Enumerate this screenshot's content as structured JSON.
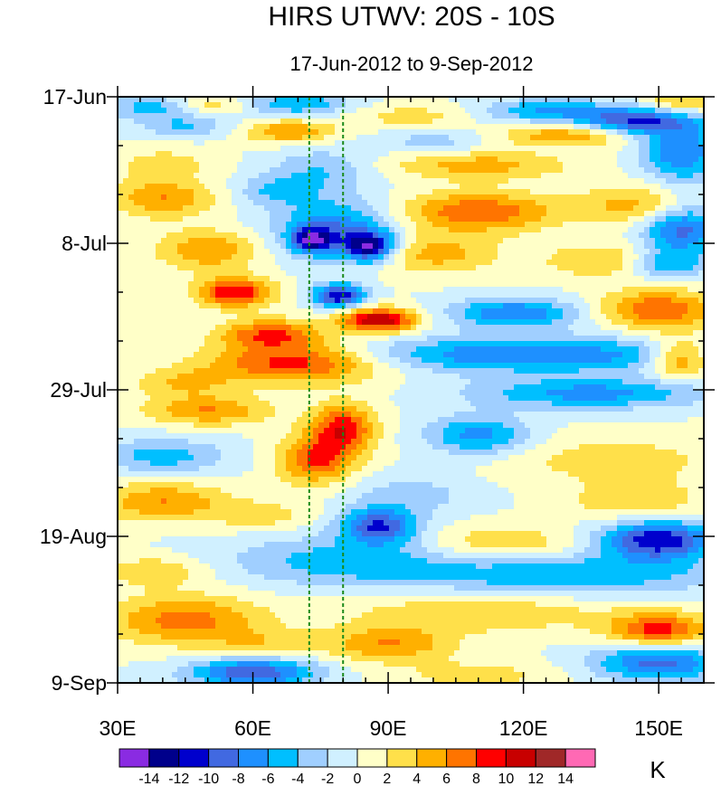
{
  "chart_data": {
    "type": "heatmap",
    "title": "HIRS UTWV: 20S - 10S",
    "subtitle": "17-Jun-2012 to 9-Sep-2012",
    "x_axis": {
      "range": [
        30,
        160
      ],
      "ticks": [
        {
          "value": 30,
          "label": "30E"
        },
        {
          "value": 60,
          "label": "60E"
        },
        {
          "value": 90,
          "label": "90E"
        },
        {
          "value": 120,
          "label": "120E"
        },
        {
          "value": 150,
          "label": "150E"
        }
      ],
      "minor_step": 10
    },
    "y_axis": {
      "range_days": [
        0,
        84
      ],
      "ticks": [
        {
          "day": 0,
          "label": "17-Jun"
        },
        {
          "day": 21,
          "label": "8-Jul"
        },
        {
          "day": 42,
          "label": "29-Jul"
        },
        {
          "day": 63,
          "label": "19-Aug"
        },
        {
          "day": 84,
          "label": "9-Sep"
        }
      ],
      "minor_step_days": 7
    },
    "reference_lines_lon": [
      72.5,
      80
    ],
    "colorbar": {
      "unit": "K",
      "levels": [
        -14,
        -12,
        -10,
        -8,
        -6,
        -4,
        -2,
        0,
        2,
        4,
        6,
        8,
        10,
        12,
        14
      ],
      "labels": [
        "-14",
        "-12",
        "-10",
        "-8",
        "-6",
        "-4",
        "-2",
        "0",
        "2",
        "4",
        "6",
        "8",
        "10",
        "12",
        "14"
      ],
      "colors": [
        "#8a2be2",
        "#00008b",
        "#0000cd",
        "#4169e1",
        "#1e90ff",
        "#00bfff",
        "#a0cfff",
        "#d0f0ff",
        "#ffffc8",
        "#ffe04a",
        "#ffb000",
        "#ff7400",
        "#ff0000",
        "#c80000",
        "#a02828",
        "#ff69b4"
      ]
    },
    "anomaly_features": [
      {
        "lon": 38,
        "day": 1.5,
        "sigma_lon": 8,
        "sigma_day": 1.2,
        "value": -5
      },
      {
        "lon": 50,
        "day": 1.2,
        "sigma_lon": 6,
        "sigma_day": 1.0,
        "value": 4
      },
      {
        "lon": 70,
        "day": 1.0,
        "sigma_lon": 8,
        "sigma_day": 1.2,
        "value": -6
      },
      {
        "lon": 95,
        "day": 2.8,
        "sigma_lon": 10,
        "sigma_day": 1.2,
        "value": 3
      },
      {
        "lon": 125,
        "day": 2.0,
        "sigma_lon": 10,
        "sigma_day": 1.2,
        "value": -6
      },
      {
        "lon": 145,
        "day": 3.5,
        "sigma_lon": 9,
        "sigma_day": 1.4,
        "value": -10
      },
      {
        "lon": 155,
        "day": 0.8,
        "sigma_lon": 6,
        "sigma_day": 1.2,
        "value": 5
      },
      {
        "lon": 45,
        "day": 4.2,
        "sigma_lon": 7,
        "sigma_day": 1.1,
        "value": -4
      },
      {
        "lon": 68,
        "day": 5.0,
        "sigma_lon": 7,
        "sigma_day": 1.2,
        "value": 6
      },
      {
        "lon": 100,
        "day": 6.5,
        "sigma_lon": 8,
        "sigma_day": 1.3,
        "value": -3
      },
      {
        "lon": 130,
        "day": 5.5,
        "sigma_lon": 10,
        "sigma_day": 1.1,
        "value": 6
      },
      {
        "lon": 155,
        "day": 8.0,
        "sigma_lon": 6,
        "sigma_day": 3.0,
        "value": -8
      },
      {
        "lon": 40,
        "day": 9.5,
        "sigma_lon": 8,
        "sigma_day": 1.5,
        "value": 3
      },
      {
        "lon": 75,
        "day": 10.5,
        "sigma_lon": 8,
        "sigma_day": 2.2,
        "value": -4
      },
      {
        "lon": 110,
        "day": 9.8,
        "sigma_lon": 14,
        "sigma_day": 1.5,
        "value": 5
      },
      {
        "lon": 40,
        "day": 14.5,
        "sigma_lon": 8,
        "sigma_day": 2.0,
        "value": 6
      },
      {
        "lon": 65,
        "day": 13.5,
        "sigma_lon": 6,
        "sigma_day": 1.5,
        "value": -4
      },
      {
        "lon": 78,
        "day": 19.0,
        "sigma_lon": 9,
        "sigma_day": 3.0,
        "value": -8
      },
      {
        "lon": 86,
        "day": 21.5,
        "sigma_lon": 4,
        "sigma_day": 1.5,
        "value": -12
      },
      {
        "lon": 73,
        "day": 20.5,
        "sigma_lon": 3,
        "sigma_day": 1.2,
        "value": -10
      },
      {
        "lon": 110,
        "day": 16.5,
        "sigma_lon": 12,
        "sigma_day": 2.0,
        "value": 8
      },
      {
        "lon": 145,
        "day": 15.5,
        "sigma_lon": 9,
        "sigma_day": 2.0,
        "value": 5
      },
      {
        "lon": 155,
        "day": 19.0,
        "sigma_lon": 6,
        "sigma_day": 2.5,
        "value": -9
      },
      {
        "lon": 50,
        "day": 22.0,
        "sigma_lon": 8,
        "sigma_day": 2.0,
        "value": 6
      },
      {
        "lon": 100,
        "day": 22.5,
        "sigma_lon": 10,
        "sigma_day": 2.0,
        "value": 5
      },
      {
        "lon": 138,
        "day": 23.5,
        "sigma_lon": 10,
        "sigma_day": 1.8,
        "value": 4
      },
      {
        "lon": 152,
        "day": 24.0,
        "sigma_lon": 6,
        "sigma_day": 1.5,
        "value": -6
      },
      {
        "lon": 56,
        "day": 28.0,
        "sigma_lon": 6,
        "sigma_day": 1.5,
        "value": 10
      },
      {
        "lon": 79,
        "day": 28.5,
        "sigma_lon": 4,
        "sigma_day": 1.2,
        "value": -12
      },
      {
        "lon": 118,
        "day": 31.0,
        "sigma_lon": 10,
        "sigma_day": 1.5,
        "value": -8
      },
      {
        "lon": 150,
        "day": 30.5,
        "sigma_lon": 9,
        "sigma_day": 2.0,
        "value": 8
      },
      {
        "lon": 88,
        "day": 32.0,
        "sigma_lon": 6,
        "sigma_day": 1.2,
        "value": 12
      },
      {
        "lon": 64,
        "day": 34.0,
        "sigma_lon": 8,
        "sigma_day": 1.5,
        "value": 8
      },
      {
        "lon": 70,
        "day": 38.0,
        "sigma_lon": 14,
        "sigma_day": 2.0,
        "value": 10
      },
      {
        "lon": 120,
        "day": 37.0,
        "sigma_lon": 30,
        "sigma_day": 1.8,
        "value": -8
      },
      {
        "lon": 155,
        "day": 37.5,
        "sigma_lon": 5,
        "sigma_day": 2.0,
        "value": 8
      },
      {
        "lon": 45,
        "day": 41.0,
        "sigma_lon": 8,
        "sigma_day": 1.5,
        "value": 4
      },
      {
        "lon": 135,
        "day": 42.5,
        "sigma_lon": 18,
        "sigma_day": 1.5,
        "value": -7
      },
      {
        "lon": 50,
        "day": 45.0,
        "sigma_lon": 10,
        "sigma_day": 1.5,
        "value": 6
      },
      {
        "lon": 80,
        "day": 47.5,
        "sigma_lon": 5,
        "sigma_day": 2.5,
        "value": 9
      },
      {
        "lon": 110,
        "day": 48.5,
        "sigma_lon": 8,
        "sigma_day": 2.0,
        "value": -7
      },
      {
        "lon": 40,
        "day": 51.5,
        "sigma_lon": 10,
        "sigma_day": 1.8,
        "value": -5
      },
      {
        "lon": 74,
        "day": 52.0,
        "sigma_lon": 6,
        "sigma_day": 2.5,
        "value": 8
      },
      {
        "lon": 140,
        "day": 52.0,
        "sigma_lon": 18,
        "sigma_day": 2.5,
        "value": 3
      },
      {
        "lon": 40,
        "day": 58.0,
        "sigma_lon": 10,
        "sigma_day": 2.0,
        "value": 6
      },
      {
        "lon": 95,
        "day": 57.0,
        "sigma_lon": 10,
        "sigma_day": 2.0,
        "value": -3
      },
      {
        "lon": 145,
        "day": 58.0,
        "sigma_lon": 10,
        "sigma_day": 2.0,
        "value": 4
      },
      {
        "lon": 88,
        "day": 61.5,
        "sigma_lon": 6,
        "sigma_day": 1.8,
        "value": -10
      },
      {
        "lon": 62,
        "day": 60.0,
        "sigma_lon": 8,
        "sigma_day": 1.5,
        "value": 3
      },
      {
        "lon": 150,
        "day": 63.5,
        "sigma_lon": 9,
        "sigma_day": 2.0,
        "value": -12
      },
      {
        "lon": 115,
        "day": 64.0,
        "sigma_lon": 12,
        "sigma_day": 1.8,
        "value": 4
      },
      {
        "lon": 80,
        "day": 66.5,
        "sigma_lon": 18,
        "sigma_day": 2.5,
        "value": -5
      },
      {
        "lon": 130,
        "day": 68.5,
        "sigma_lon": 24,
        "sigma_day": 2.0,
        "value": -6
      },
      {
        "lon": 38,
        "day": 68.0,
        "sigma_lon": 8,
        "sigma_day": 1.5,
        "value": 4
      },
      {
        "lon": 45,
        "day": 75.0,
        "sigma_lon": 12,
        "sigma_day": 2.5,
        "value": 7
      },
      {
        "lon": 110,
        "day": 74.0,
        "sigma_lon": 20,
        "sigma_day": 2.0,
        "value": 4
      },
      {
        "lon": 150,
        "day": 76.5,
        "sigma_lon": 8,
        "sigma_day": 1.8,
        "value": 9
      },
      {
        "lon": 62,
        "day": 78.5,
        "sigma_lon": 8,
        "sigma_day": 1.5,
        "value": 3
      },
      {
        "lon": 90,
        "day": 78.5,
        "sigma_lon": 10,
        "sigma_day": 1.8,
        "value": 6
      },
      {
        "lon": 60,
        "day": 82.5,
        "sigma_lon": 10,
        "sigma_day": 1.5,
        "value": -10
      },
      {
        "lon": 110,
        "day": 83.0,
        "sigma_lon": 12,
        "sigma_day": 1.5,
        "value": 3
      },
      {
        "lon": 150,
        "day": 81.0,
        "sigma_lon": 10,
        "sigma_day": 2.0,
        "value": -9
      }
    ]
  }
}
